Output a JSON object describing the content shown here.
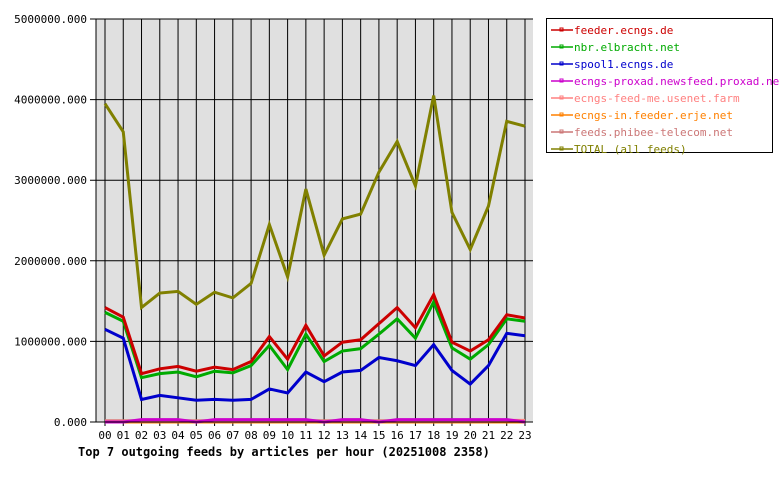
{
  "chart_data": {
    "type": "line",
    "title": "Top 7 outgoing feeds by articles per hour (20251008 2358)",
    "xlabel": "",
    "ylabel": "",
    "ylim": [
      0,
      5000000
    ],
    "yticks": [
      "0.000",
      "1000000.000",
      "2000000.000",
      "3000000.000",
      "4000000.000",
      "5000000.000"
    ],
    "ytick_values": [
      0,
      1000000,
      2000000,
      3000000,
      4000000,
      5000000
    ],
    "grid": true,
    "legend_position": "right",
    "categories": [
      "00",
      "01",
      "02",
      "03",
      "04",
      "05",
      "06",
      "07",
      "08",
      "09",
      "10",
      "11",
      "12",
      "13",
      "14",
      "15",
      "16",
      "17",
      "18",
      "19",
      "20",
      "21",
      "22",
      "23"
    ],
    "series": [
      {
        "name": "feeder.ecngs.de",
        "color": "#cc0000",
        "values": [
          1420000,
          1300000,
          600000,
          660000,
          690000,
          630000,
          680000,
          650000,
          750000,
          1060000,
          780000,
          1200000,
          820000,
          990000,
          1020000,
          1220000,
          1420000,
          1170000,
          1580000,
          990000,
          880000,
          1020000,
          1330000,
          1290000
        ]
      },
      {
        "name": "nbr.elbracht.net",
        "color": "#00aa00",
        "values": [
          1360000,
          1250000,
          550000,
          600000,
          620000,
          560000,
          630000,
          610000,
          700000,
          950000,
          650000,
          1090000,
          750000,
          880000,
          910000,
          1090000,
          1280000,
          1040000,
          1490000,
          920000,
          780000,
          960000,
          1280000,
          1250000
        ]
      },
      {
        "name": "spool1.ecngs.de",
        "color": "#0000cc",
        "values": [
          1150000,
          1040000,
          280000,
          330000,
          300000,
          270000,
          280000,
          270000,
          280000,
          410000,
          360000,
          620000,
          500000,
          620000,
          640000,
          800000,
          760000,
          700000,
          960000,
          640000,
          470000,
          700000,
          1100000,
          1070000
        ]
      },
      {
        "name": "ecngs-proxad.newsfeed.proxad.net",
        "color": "#cc00cc",
        "values": [
          0,
          0,
          30000,
          30000,
          30000,
          0,
          30000,
          30000,
          30000,
          30000,
          30000,
          30000,
          0,
          30000,
          30000,
          0,
          30000,
          30000,
          30000,
          30000,
          30000,
          30000,
          30000,
          0
        ]
      },
      {
        "name": "ecngs-feed-me.usenet.farm",
        "color": "#ff8080",
        "values": [
          10000,
          10000,
          10000,
          10000,
          10000,
          10000,
          10000,
          10000,
          10000,
          10000,
          10000,
          10000,
          10000,
          10000,
          10000,
          10000,
          10000,
          10000,
          10000,
          10000,
          10000,
          10000,
          20000,
          20000
        ]
      },
      {
        "name": "ecngs-in.feeder.erje.net",
        "color": "#ff8000",
        "values": [
          0,
          0,
          0,
          0,
          0,
          0,
          0,
          0,
          0,
          0,
          0,
          0,
          0,
          0,
          0,
          0,
          0,
          0,
          0,
          0,
          0,
          0,
          0,
          0
        ]
      },
      {
        "name": "feeds.phibee-telecom.net",
        "color": "#cc7777",
        "values": [
          15000,
          15000,
          15000,
          15000,
          15000,
          15000,
          15000,
          15000,
          15000,
          15000,
          15000,
          15000,
          15000,
          15000,
          15000,
          15000,
          15000,
          15000,
          15000,
          15000,
          15000,
          15000,
          15000,
          15000
        ]
      },
      {
        "name": "TOTAL (all feeds)",
        "color": "#808000",
        "values": [
          3950000,
          3600000,
          1420000,
          1600000,
          1620000,
          1460000,
          1610000,
          1540000,
          1720000,
          2450000,
          1800000,
          2890000,
          2070000,
          2520000,
          2580000,
          3100000,
          3480000,
          2930000,
          4050000,
          2600000,
          2140000,
          2680000,
          3730000,
          3670000
        ]
      }
    ]
  }
}
